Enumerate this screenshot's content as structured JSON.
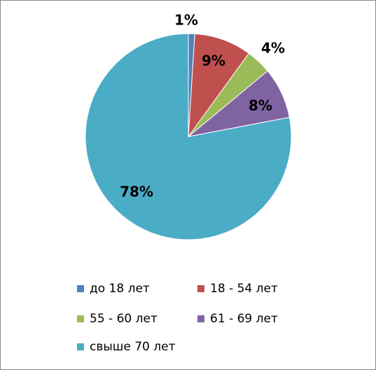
{
  "chart_data": {
    "type": "pie",
    "categories": [
      "до 18 лет",
      "18 - 54 лет",
      "55 - 60 лет",
      "61 - 69 лет",
      "свыше 70 лет"
    ],
    "values": [
      1,
      9,
      4,
      8,
      78
    ],
    "value_labels": [
      "1%",
      "9%",
      "4%",
      "8%",
      "78%"
    ],
    "colors": [
      "#4f81bd",
      "#c0504d",
      "#9bbb59",
      "#8064a2",
      "#4bacc6"
    ],
    "legend": "bottom"
  }
}
